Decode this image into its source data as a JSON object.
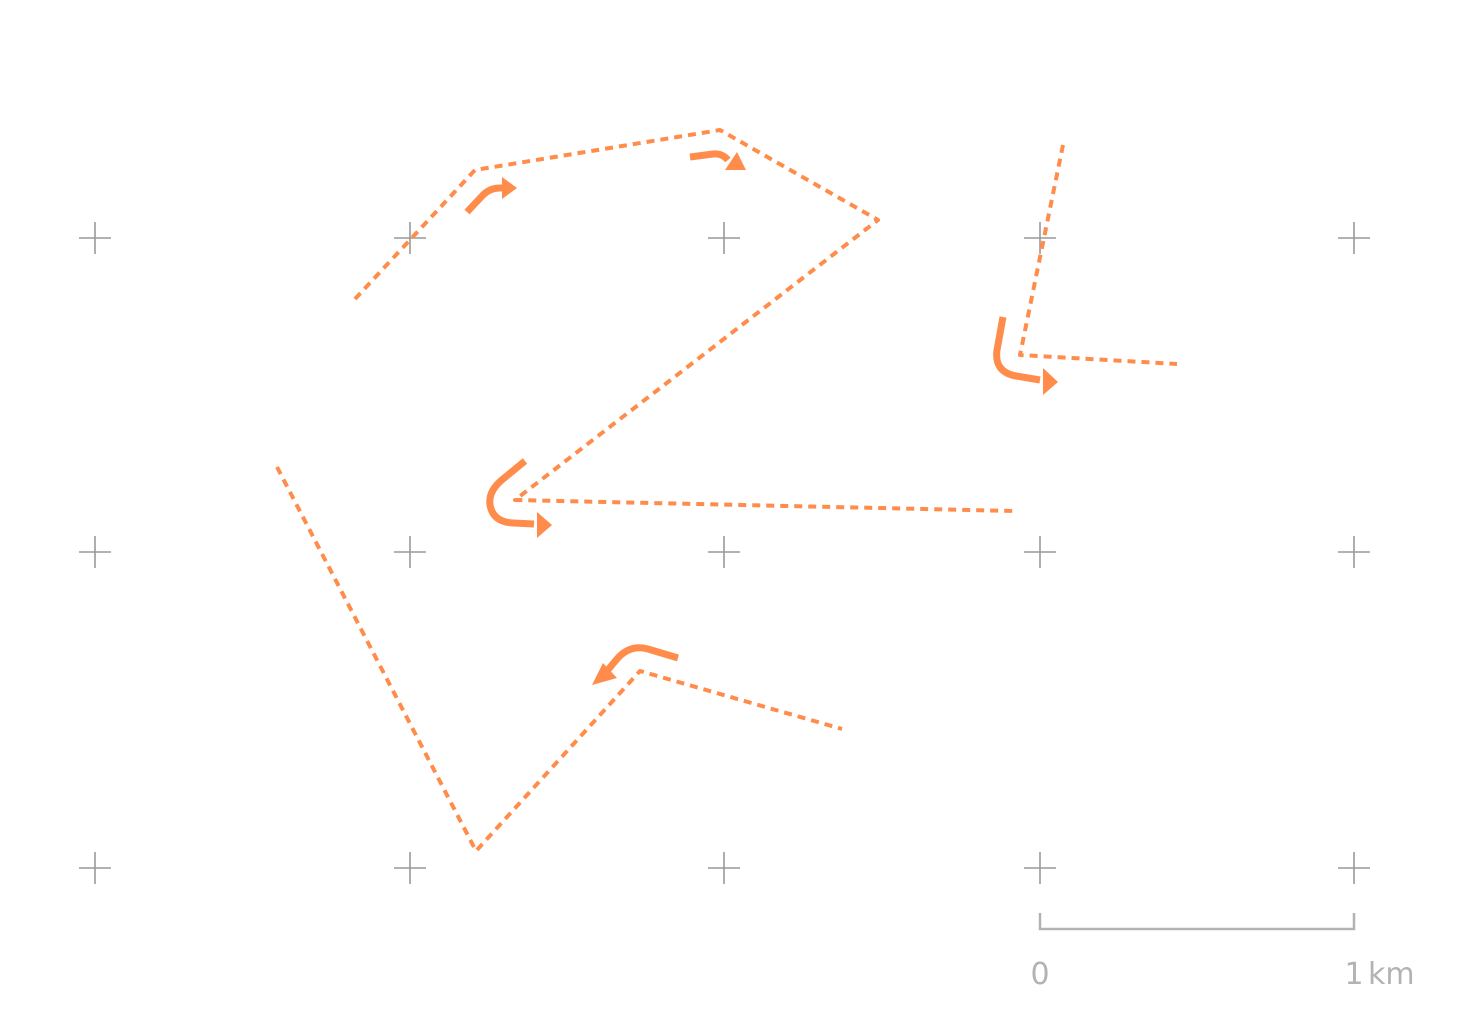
{
  "map": {
    "route_color": "#ff8c4a",
    "grid_color": "#999999",
    "scale_color": "#b3b3b3",
    "scale_bar": {
      "start_label": "0",
      "end_value": "1",
      "end_unit": "km"
    }
  }
}
